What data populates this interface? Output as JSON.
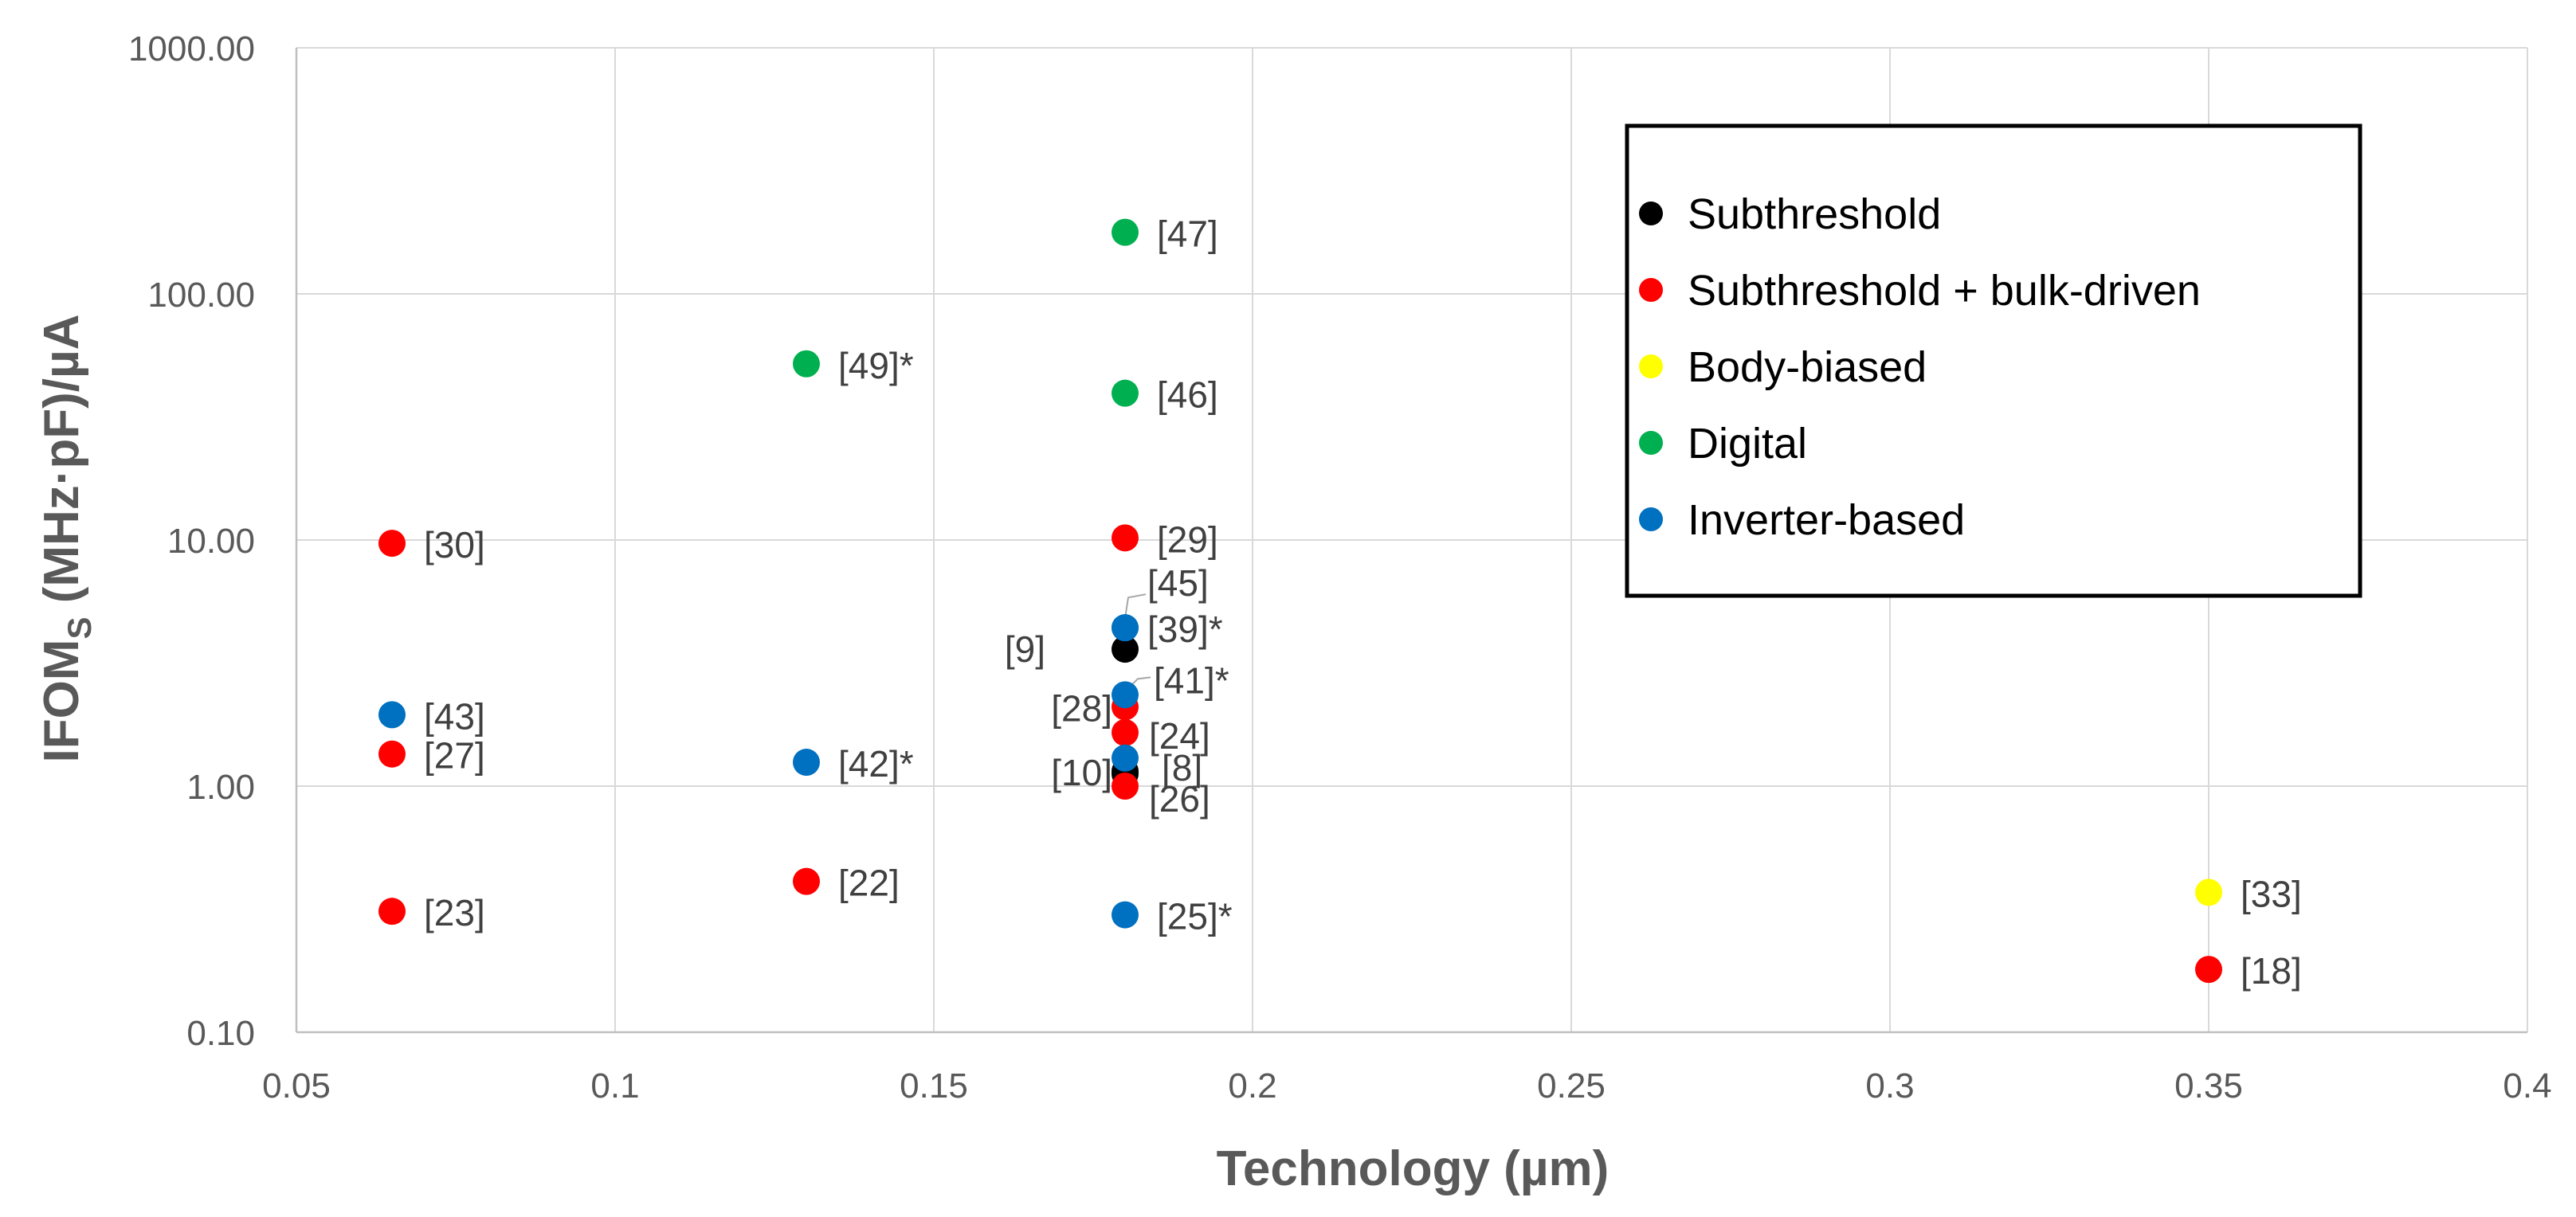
{
  "chart_data": {
    "type": "scatter",
    "xlabel": "Technology (µm)",
    "ylabel_main": "IFOM",
    "ylabel_sub": "S",
    "ylabel_rest": " (MHz·pF)/µA",
    "xlim": [
      0.05,
      0.4
    ],
    "xticks": [
      0.05,
      0.1,
      0.15,
      0.2,
      0.25,
      0.3,
      0.35,
      0.4
    ],
    "xtick_labels": [
      "0.05",
      "0.1",
      "0.15",
      "0.2",
      "0.25",
      "0.3",
      "0.35",
      "0.4"
    ],
    "ylim": [
      0.1,
      1000
    ],
    "yscale": "log",
    "yticks": [
      0.1,
      1,
      10,
      100,
      1000
    ],
    "ytick_labels": [
      "0.10",
      "1.00",
      "10.00",
      "100.00",
      "1000.00"
    ],
    "grid": true,
    "legend_position": "top-right",
    "series": [
      {
        "name": "Subthreshold",
        "color": "#000000",
        "points": [
          {
            "x": 0.18,
            "y": 3.6,
            "label": "[9]"
          },
          {
            "x": 0.18,
            "y": 1.15,
            "label": "[10]"
          },
          {
            "x": 0.18,
            "y": 1.12,
            "label": "[8]"
          }
        ]
      },
      {
        "name": "Subthreshold + bulk-driven",
        "color": "#ff0000",
        "points": [
          {
            "x": 0.065,
            "y": 9.7,
            "label": "[30]"
          },
          {
            "x": 0.065,
            "y": 1.35,
            "label": "[27]"
          },
          {
            "x": 0.065,
            "y": 0.31,
            "label": "[23]"
          },
          {
            "x": 0.13,
            "y": 0.41,
            "label": "[22]"
          },
          {
            "x": 0.18,
            "y": 10.2,
            "label": "[29]"
          },
          {
            "x": 0.18,
            "y": 2.1,
            "label": "[28]"
          },
          {
            "x": 0.18,
            "y": 1.65,
            "label": "[24]"
          },
          {
            "x": 0.18,
            "y": 1.0,
            "label": "[26]"
          },
          {
            "x": 0.35,
            "y": 0.18,
            "label": "[18]"
          }
        ]
      },
      {
        "name": "Body-biased",
        "color": "#ffff00",
        "points": [
          {
            "x": 0.35,
            "y": 0.37,
            "label": "[33]"
          }
        ]
      },
      {
        "name": "Digital",
        "color": "#00b050",
        "points": [
          {
            "x": 0.18,
            "y": 178,
            "label": "[47]"
          },
          {
            "x": 0.13,
            "y": 52,
            "label": "[49]*"
          },
          {
            "x": 0.18,
            "y": 39.5,
            "label": "[46]"
          }
        ]
      },
      {
        "name": "Inverter-based",
        "color": "#0070c0",
        "points": [
          {
            "x": 0.065,
            "y": 1.95,
            "label": "[43]"
          },
          {
            "x": 0.13,
            "y": 1.25,
            "label": "[42]*"
          },
          {
            "x": 0.18,
            "y": 4.4,
            "label": "[45]"
          },
          {
            "x": 0.18,
            "y": 4.4,
            "label": "[39]*"
          },
          {
            "x": 0.18,
            "y": 2.35,
            "label": "[41]*"
          },
          {
            "x": 0.18,
            "y": 1.3,
            "label": ""
          },
          {
            "x": 0.18,
            "y": 0.3,
            "label": "[25]*"
          }
        ]
      }
    ]
  }
}
